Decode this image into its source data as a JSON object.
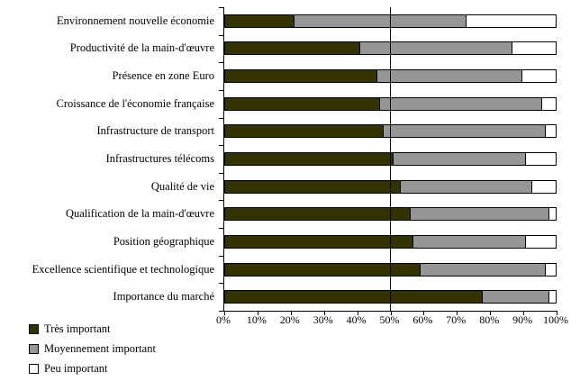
{
  "chart_data": {
    "type": "bar",
    "orientation": "horizontal",
    "stacked": true,
    "title": "",
    "categories": [
      "Environnement nouvelle économie",
      "Productivité de la main-d'œuvre",
      "Présence en zone Euro",
      "Croissance de l'économie française",
      "Infrastructure de transport",
      "Infrastructures télécoms",
      "Qualité de vie",
      "Qualification de la main-d'œuvre",
      "Position géographique",
      "Excellence scientifique et technologique",
      "Importance du marché"
    ],
    "series": [
      {
        "name": "Très important",
        "color": "#333300",
        "values": [
          21,
          41,
          46,
          47,
          48,
          51,
          53,
          56,
          57,
          59,
          78
        ]
      },
      {
        "name": "Moyennement important",
        "color": "#969696",
        "values": [
          52,
          46,
          44,
          49,
          49,
          40,
          40,
          42,
          34,
          38,
          20
        ]
      },
      {
        "name": "Peu important",
        "color": "#ffffff",
        "values": [
          27,
          13,
          10,
          4,
          3,
          9,
          7,
          2,
          9,
          3,
          2
        ]
      }
    ],
    "x_ticks": [
      "0%",
      "10%",
      "20%",
      "30%",
      "40%",
      "50%",
      "60%",
      "70%",
      "80%",
      "90%",
      "100%"
    ],
    "xlim": [
      0,
      100
    ],
    "reference_line_x": 50,
    "grid": "single vertical reference line at 50%",
    "legend_position": "bottom-left",
    "axis_color": "#000000",
    "background_color": "#ffffff"
  }
}
